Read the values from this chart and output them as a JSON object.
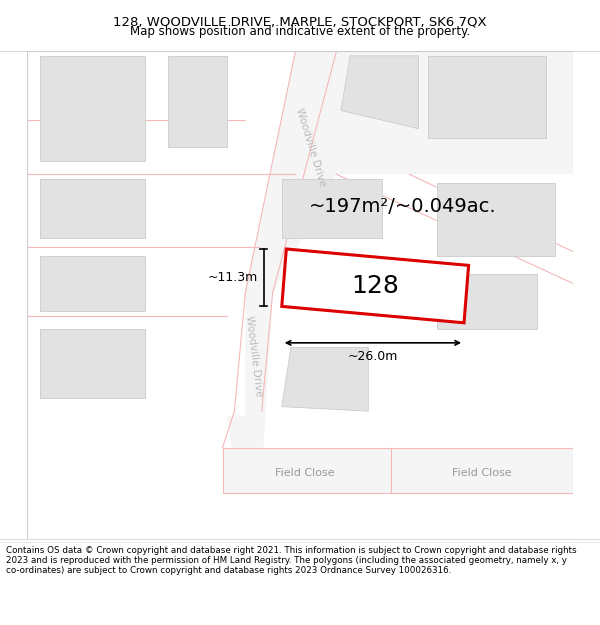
{
  "title": "128, WOODVILLE DRIVE, MARPLE, STOCKPORT, SK6 7QX",
  "subtitle": "Map shows position and indicative extent of the property.",
  "footer": "Contains OS data © Crown copyright and database right 2021. This information is subject to Crown copyright and database rights 2023 and is reproduced with the permission of HM Land Registry. The polygons (including the associated geometry, namely x, y co-ordinates) are subject to Crown copyright and database rights 2023 Ordnance Survey 100026316.",
  "area_label": "~197m²/~0.049ac.",
  "width_label": "~26.0m",
  "height_label": "~11.3m",
  "number_label": "128",
  "map_bg": "#ffffff",
  "building_fill": "#e2e2e2",
  "building_edge": "#cccccc",
  "highlight_fill": "#ffffff",
  "highlight_edge": "#dd0000",
  "road_line_color": "#f5b8b8",
  "road_fill": "#f9f9f9",
  "street_label_color": "#bbbbbb",
  "road_label_color": "#999999",
  "title_fontsize": 9.5,
  "subtitle_fontsize": 8.5,
  "footer_fontsize": 6.3,
  "area_fontsize": 14,
  "number_fontsize": 18,
  "dim_fontsize": 9
}
